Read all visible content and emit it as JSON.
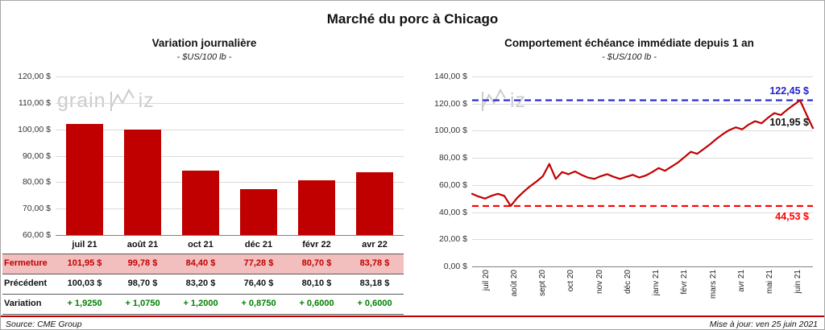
{
  "title": "Marché du porc à Chicago",
  "watermark": {
    "brand_prefix": "grain",
    "brand_suffix": "iz"
  },
  "footer": {
    "source": "Source: CME Group",
    "updated": "Mise à jour: ven 25 juin 2021"
  },
  "colors": {
    "bar": "#c00000",
    "line": "#c00000",
    "max_line": "#2222cc",
    "min_line": "#ff0000",
    "close_row_bg": "#f2bebe",
    "close_text": "#c00000",
    "variation_text": "#008000",
    "grid": "#d9d9d9",
    "footer_rule": "#c00000"
  },
  "chart_data": [
    {
      "type": "bar",
      "title": "Variation journalière",
      "subtitle": "- $US/100 lb -",
      "categories": [
        "juil 21",
        "août 21",
        "oct 21",
        "déc 21",
        "févr 22",
        "avr 22"
      ],
      "values": [
        101.95,
        99.78,
        84.4,
        77.28,
        80.7,
        83.78
      ],
      "ylim": [
        60,
        120
      ],
      "ytick_step": 10,
      "ytick_labels": [
        "120,00 $",
        "110,00 $",
        "100,00 $",
        "90,00 $",
        "80,00 $",
        "70,00 $",
        "60,00 $"
      ],
      "grid": true,
      "table": {
        "rows": [
          {
            "label": "Fermeture",
            "values": [
              "101,95 $",
              "99,78 $",
              "84,40 $",
              "77,28 $",
              "80,70 $",
              "83,78 $"
            ]
          },
          {
            "label": "Précédent",
            "values": [
              "100,03 $",
              "98,70 $",
              "83,20 $",
              "76,40 $",
              "80,10 $",
              "83,18 $"
            ]
          },
          {
            "label": "Variation",
            "values": [
              "+ 1,9250",
              "+ 1,0750",
              "+ 1,2000",
              "+ 0,8750",
              "+ 0,6000",
              "+ 0,6000"
            ]
          }
        ]
      }
    },
    {
      "type": "line",
      "title": "Comportement échéance immédiate depuis 1 an",
      "subtitle": "- $US/100 lb -",
      "x_tick_labels": [
        "juil 20",
        "août 20",
        "sept 20",
        "oct 20",
        "nov 20",
        "déc 20",
        "janv 21",
        "févr 21",
        "mars 21",
        "avr 21",
        "mai 21",
        "juin 21"
      ],
      "ylim": [
        0,
        140
      ],
      "ytick_step": 20,
      "ytick_labels": [
        "140,00 $",
        "120,00 $",
        "100,00 $",
        "80,00 $",
        "60,00 $",
        "40,00 $",
        "20,00 $",
        "0,00 $"
      ],
      "grid": true,
      "values": [
        53.5,
        51.5,
        50.0,
        52.0,
        53.5,
        52.0,
        44.53,
        50.5,
        55.0,
        59.0,
        62.5,
        66.5,
        75.5,
        64.5,
        69.5,
        68.0,
        70.0,
        67.5,
        65.5,
        64.5,
        66.5,
        68.0,
        66.0,
        64.5,
        66.0,
        67.5,
        65.5,
        67.0,
        69.5,
        72.5,
        70.5,
        73.5,
        76.5,
        80.5,
        84.5,
        83.0,
        86.5,
        90.0,
        94.0,
        97.5,
        100.5,
        102.5,
        101.0,
        104.5,
        107.0,
        105.5,
        109.5,
        113.0,
        111.5,
        115.5,
        119.0,
        122.45,
        112.0,
        101.95
      ],
      "annotations": {
        "max": {
          "value": 122.45,
          "label": "122,45 $"
        },
        "min": {
          "value": 44.53,
          "label": "44,53 $"
        },
        "last": {
          "value": 101.95,
          "label": "101,95 $"
        }
      }
    }
  ]
}
